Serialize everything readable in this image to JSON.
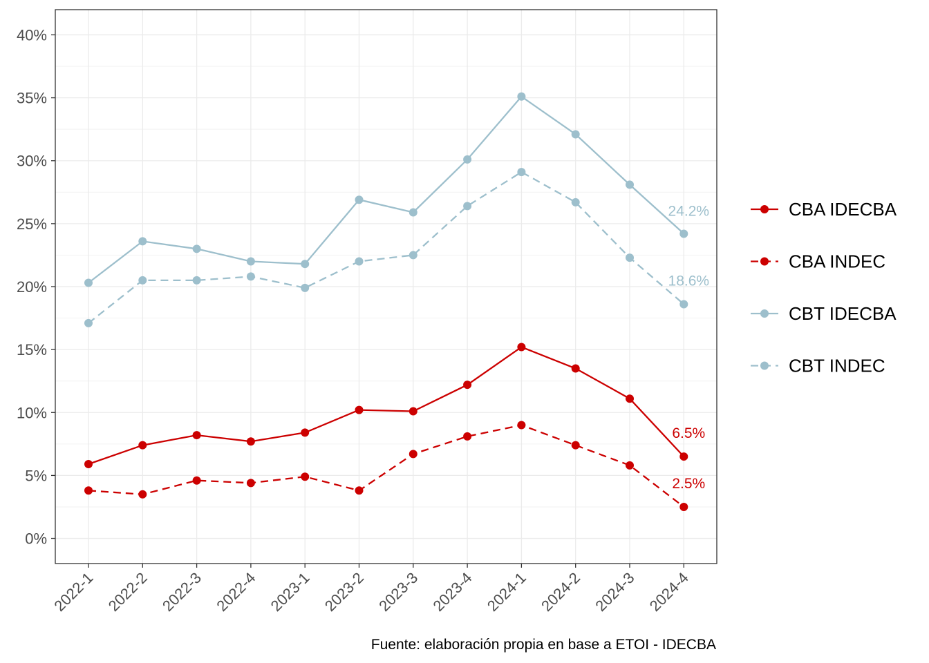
{
  "chart_data": {
    "type": "line",
    "title": "",
    "xlabel": "",
    "ylabel": "",
    "categories": [
      "2022-1",
      "2022-2",
      "2022-3",
      "2022-4",
      "2023-1",
      "2023-2",
      "2023-3",
      "2023-4",
      "2024-1",
      "2024-2",
      "2024-3",
      "2024-4"
    ],
    "ylim": [
      -0.02,
      0.42
    ],
    "yticks": [
      0,
      0.05,
      0.1,
      0.15,
      0.2,
      0.25,
      0.3,
      0.35,
      0.4
    ],
    "ytick_labels": [
      "0%",
      "5%",
      "10%",
      "15%",
      "20%",
      "25%",
      "30%",
      "35%",
      "40%"
    ],
    "grid": true,
    "legend_position": "right",
    "series": [
      {
        "name": "CBA IDECBA",
        "color": "#cc0000",
        "dash": "solid",
        "values": [
          0.059,
          0.074,
          0.082,
          0.077,
          0.084,
          0.102,
          0.101,
          0.122,
          0.152,
          0.135,
          0.111,
          0.065
        ],
        "end_label": "6.5%"
      },
      {
        "name": "CBA INDEC",
        "color": "#cc0000",
        "dash": "dashed",
        "values": [
          0.038,
          0.035,
          0.046,
          0.044,
          0.049,
          0.038,
          0.067,
          0.081,
          0.09,
          0.074,
          0.058,
          0.025
        ],
        "end_label": "2.5%"
      },
      {
        "name": "CBT IDECBA",
        "color": "#9dbfcc",
        "dash": "solid",
        "values": [
          0.203,
          0.236,
          0.23,
          0.22,
          0.218,
          0.269,
          0.259,
          0.301,
          0.351,
          0.321,
          0.281,
          0.242
        ],
        "end_label": "24.2%"
      },
      {
        "name": "CBT INDEC",
        "color": "#9dbfcc",
        "dash": "dashed",
        "values": [
          0.171,
          0.205,
          0.205,
          0.208,
          0.199,
          0.22,
          0.225,
          0.264,
          0.291,
          0.267,
          0.223,
          0.186
        ],
        "end_label": "18.6%"
      }
    ],
    "caption": "Fuente: elaboración propia en base a ETOI - IDECBA"
  }
}
